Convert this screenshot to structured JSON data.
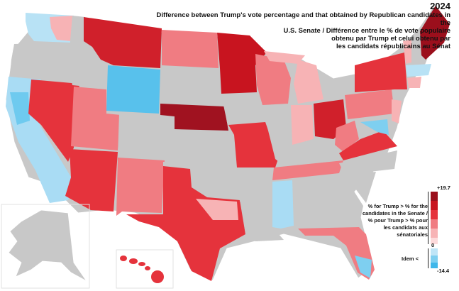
{
  "title": {
    "year": "2024",
    "lines": [
      "Difference between Trump's vote percentage and that obtained by Republican candidates in the",
      "U.S. Senate / Différence entre le % de vote populaire",
      "obtenu par Trump et celui obtenu par",
      "les candidats républicains au Sénat"
    ]
  },
  "legend": {
    "max_label": "+19.7",
    "zero_label": "0",
    "min_label": "-14.4",
    "positive_text": "% for Trump > % for the candidates in the Senate / % pour Trump > % pour les candidats aux sénatoriales",
    "negative_text": "Idem <",
    "colors": {
      "positive": [
        "#9b0f1c",
        "#c8141f",
        "#e5333c",
        "#f07c82",
        "#f7b3b5",
        "#fcdadb"
      ],
      "negative": [
        "#bfe5f7",
        "#7ecff0",
        "#3fb7ea"
      ],
      "no_race": "#c8c8c8"
    }
  },
  "map": {
    "land_color": "#c8c8c8",
    "border_color": "#ffffff",
    "states_with_senate_race": {
      "deep_red": [
        "ME"
      ],
      "red": [
        "WA",
        "MT",
        "ND",
        "MN",
        "NE",
        "NV",
        "OH",
        "VA",
        "NY"
      ],
      "light_red": [
        "WI",
        "MI",
        "PA",
        "IN",
        "MO",
        "TN",
        "TX",
        "NM",
        "AZ",
        "UT",
        "WY",
        "VT",
        "MA",
        "CT",
        "NJ",
        "DE",
        "MD",
        "WV",
        "FL",
        "MS"
      ],
      "blue": [
        "CA",
        "WY_east",
        "ND_small"
      ],
      "light_blue": [
        "CA",
        "FL_south",
        "MS"
      ]
    },
    "states_no_race": [
      "OR",
      "ID",
      "CO",
      "KS",
      "OK",
      "AR",
      "LA",
      "AL",
      "GA",
      "SC",
      "NC",
      "KY",
      "IL",
      "IA",
      "SD",
      "AK",
      "NH"
    ]
  }
}
